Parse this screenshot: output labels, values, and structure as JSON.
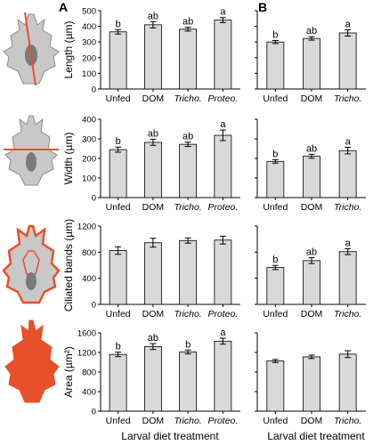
{
  "panel_labels": [
    "A",
    "B"
  ],
  "x_title": "Larval diet treatment",
  "chart_data": [
    {
      "type": "bar",
      "panel": "A",
      "metric": "length",
      "ylabel": "Length (µm)",
      "ylim": [
        0,
        500
      ],
      "ticks": [
        0,
        100,
        200,
        300,
        400,
        500
      ],
      "categories": [
        "Unfed",
        "DOM",
        "Tricho.",
        "Proteo."
      ],
      "values": [
        365,
        410,
        382,
        440
      ],
      "errors": [
        14,
        20,
        12,
        16
      ],
      "letters": [
        "b",
        "ab",
        "ab",
        "a"
      ]
    },
    {
      "type": "bar",
      "panel": "B",
      "metric": "length",
      "ylim": [
        0,
        500
      ],
      "ticks": [
        0,
        100,
        200,
        300,
        400,
        500
      ],
      "categories": [
        "Unfed",
        "DOM",
        "Tricho."
      ],
      "values": [
        300,
        323,
        358
      ],
      "errors": [
        10,
        11,
        20
      ],
      "letters": [
        "b",
        "ab",
        "a"
      ]
    },
    {
      "type": "bar",
      "panel": "A",
      "metric": "width",
      "ylabel": "Width (µm)",
      "ylim": [
        0,
        400
      ],
      "ticks": [
        0,
        100,
        200,
        300,
        400
      ],
      "categories": [
        "Unfed",
        "DOM",
        "Tricho.",
        "Proteo."
      ],
      "values": [
        245,
        282,
        272,
        318
      ],
      "errors": [
        13,
        15,
        11,
        27
      ],
      "letters": [
        "b",
        "ab",
        "ab",
        "a"
      ]
    },
    {
      "type": "bar",
      "panel": "B",
      "metric": "width",
      "ylim": [
        0,
        400
      ],
      "ticks": [
        0,
        100,
        200,
        300,
        400
      ],
      "categories": [
        "Unfed",
        "DOM",
        "Tricho."
      ],
      "values": [
        185,
        211,
        240
      ],
      "errors": [
        9,
        10,
        17
      ],
      "letters": [
        "b",
        "ab",
        "a"
      ]
    },
    {
      "type": "bar",
      "panel": "A",
      "metric": "ciliated_bands",
      "ylabel": "Ciliated bands (µm)",
      "ylim": [
        0,
        1200
      ],
      "ticks": [
        0,
        400,
        800,
        1200
      ],
      "categories": [
        "Unfed",
        "DOM",
        "Tricho.",
        "Proteo."
      ],
      "values": [
        825,
        945,
        978,
        985
      ],
      "errors": [
        58,
        68,
        40,
        60
      ],
      "letters": [
        "",
        "",
        "",
        ""
      ]
    },
    {
      "type": "bar",
      "panel": "B",
      "metric": "ciliated_bands",
      "ylim": [
        0,
        1200
      ],
      "ticks": [
        0,
        400,
        800,
        1200
      ],
      "categories": [
        "Unfed",
        "DOM",
        "Tricho."
      ],
      "values": [
        565,
        670,
        808
      ],
      "errors": [
        32,
        45,
        45
      ],
      "letters": [
        "b",
        "ab",
        "a"
      ]
    },
    {
      "type": "bar",
      "panel": "A",
      "metric": "area",
      "ylabel": "Area (µm²)",
      "ylim": [
        0,
        1600
      ],
      "ticks": [
        0,
        400,
        800,
        1200,
        1600
      ],
      "categories": [
        "Unfed",
        "DOM",
        "Tricho.",
        "Proteo."
      ],
      "values": [
        1160,
        1320,
        1210,
        1430
      ],
      "errors": [
        45,
        60,
        40,
        60
      ],
      "letters": [
        "b",
        "ab",
        "b",
        "a"
      ]
    },
    {
      "type": "bar",
      "panel": "B",
      "metric": "area",
      "ylim": [
        0,
        1600
      ],
      "ticks": [
        0,
        400,
        800,
        1200,
        1600
      ],
      "categories": [
        "Unfed",
        "DOM",
        "Tricho."
      ],
      "values": [
        1025,
        1110,
        1165
      ],
      "errors": [
        30,
        35,
        70
      ],
      "letters": [
        "",
        "",
        ""
      ]
    }
  ],
  "colors": {
    "bar": "#d9d9d9",
    "larva_fill": "#c8c8c8",
    "larva_dark": "#7a7a7a",
    "accent": "#e8502a"
  },
  "icons": [
    "larva-length-icon",
    "larva-width-icon",
    "larva-ciliated-bands-icon",
    "larva-area-icon"
  ]
}
